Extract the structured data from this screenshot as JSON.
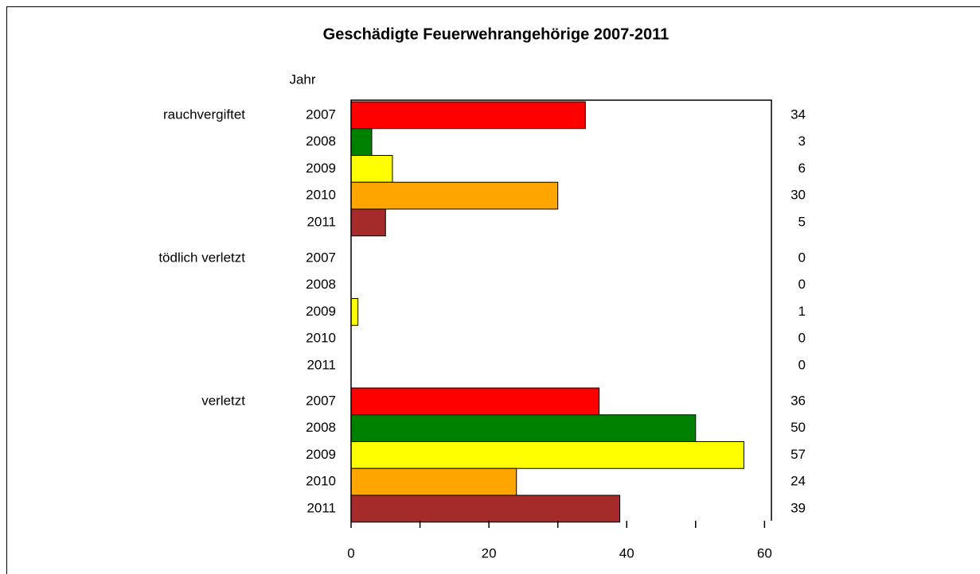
{
  "chart_data": {
    "type": "bar",
    "orientation": "horizontal",
    "title": "Geschädigte Feuerwehrangehörige 2007-2011",
    "ylabel": "Jahr",
    "categories": [
      "rauchvergiftet",
      "tödlich verletzt",
      "verletzt"
    ],
    "series": [
      {
        "name": "2007",
        "color": "#ff0000",
        "values": [
          34,
          0,
          36
        ]
      },
      {
        "name": "2008",
        "color": "#008000",
        "values": [
          3,
          0,
          50
        ]
      },
      {
        "name": "2009",
        "color": "#ffff00",
        "values": [
          6,
          1,
          57
        ]
      },
      {
        "name": "2010",
        "color": "#ffa500",
        "values": [
          30,
          0,
          24
        ]
      },
      {
        "name": "2011",
        "color": "#a52a2a",
        "values": [
          5,
          0,
          39
        ]
      }
    ],
    "xlim": [
      0,
      61
    ],
    "xticks": [
      0,
      20,
      40,
      60
    ],
    "xminor_ticks": [
      10,
      30,
      50
    ]
  }
}
